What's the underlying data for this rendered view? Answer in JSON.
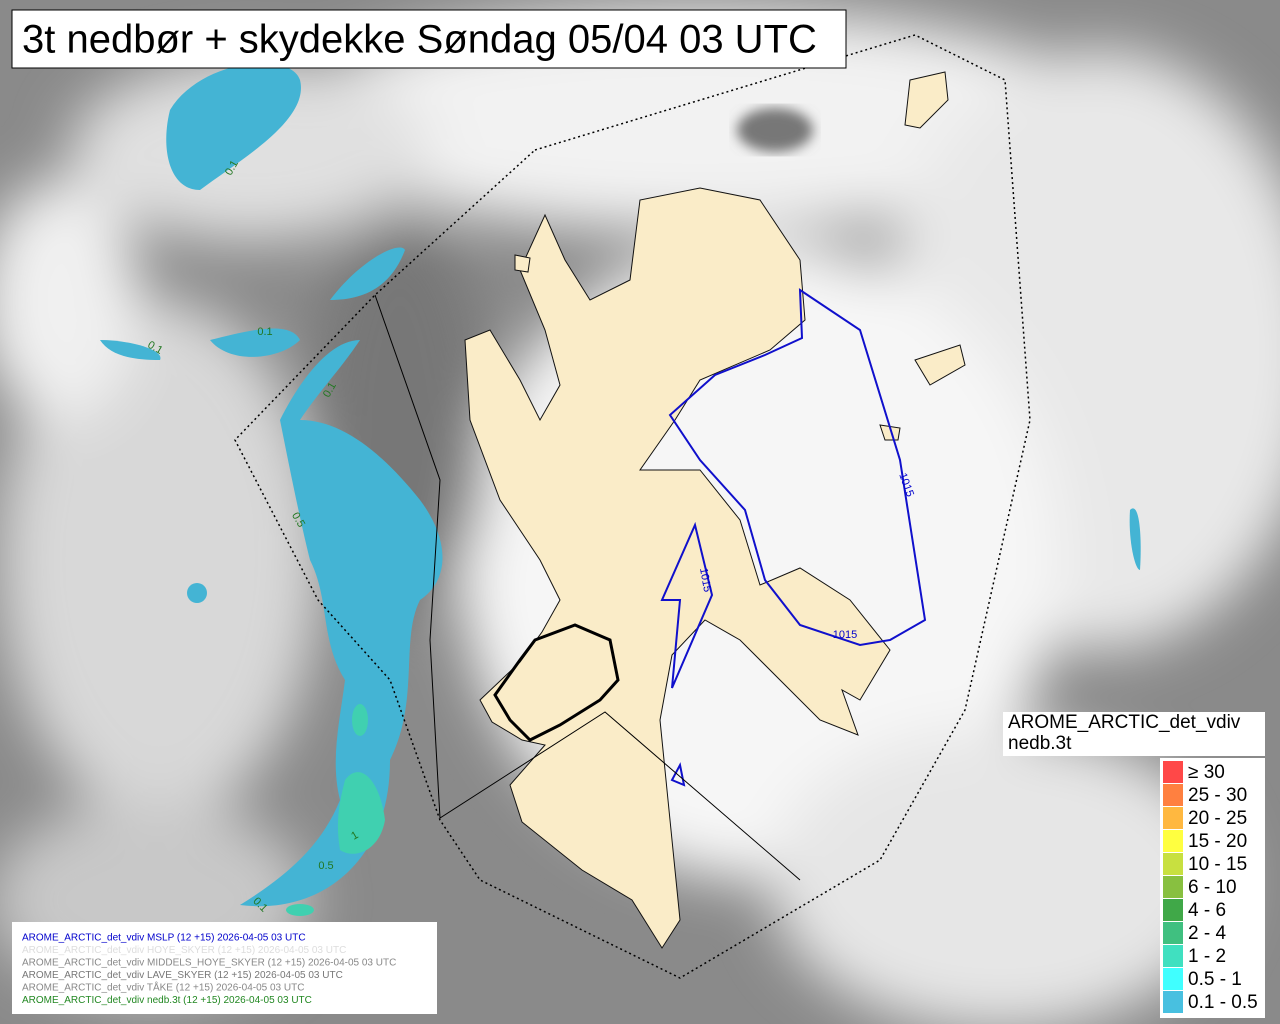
{
  "title": "3t nedbør + skydekke Søndag 05/04 03 UTC",
  "legend": {
    "title": [
      "AROME_ARCTIC_det_vdiv",
      "nedb.3t"
    ],
    "items": [
      {
        "label": "≥ 30",
        "color": "#ff4848"
      },
      {
        "label": "25 - 30",
        "color": "#ff8040"
      },
      {
        "label": "20 - 25",
        "color": "#ffb840"
      },
      {
        "label": "15 - 20",
        "color": "#ffff40"
      },
      {
        "label": "10 - 15",
        "color": "#c8e040"
      },
      {
        "label": "6 - 10",
        "color": "#88c040"
      },
      {
        "label": "4 - 6",
        "color": "#40a848"
      },
      {
        "label": "2 - 4",
        "color": "#40c080"
      },
      {
        "label": "1 - 2",
        "color": "#40e0c0"
      },
      {
        "label": "0.5 - 1",
        "color": "#40ffff"
      },
      {
        "label": "0.1 - 0.5",
        "color": "#48c0e0"
      }
    ]
  },
  "credits": [
    {
      "text": "AROME_ARCTIC_det_vdiv MSLP (12 +15) 2026-04-05 03 UTC",
      "color": "#0000cc"
    },
    {
      "text": "AROME_ARCTIC_det_vdiv HOYE_SKYER (12 +15) 2026-04-05 03 UTC",
      "color": "#dddddd"
    },
    {
      "text": "AROME_ARCTIC_det_vdiv MIDDELS_HOYE_SKYER (12 +15) 2026-04-05 03 UTC",
      "color": "#888888"
    },
    {
      "text": "AROME_ARCTIC_det_vdiv LAVE_SKYER (12 +15) 2026-04-05 03 UTC",
      "color": "#777777"
    },
    {
      "text": "AROME_ARCTIC_det_vdiv TÅKE (12 +15) 2026-04-05 03 UTC",
      "color": "#888888"
    },
    {
      "text": "AROME_ARCTIC_det_vdiv nedb.3t (12 +15) 2026-04-05 03 UTC",
      "color": "#228822"
    }
  ],
  "contour_labels": [
    {
      "text": "0.1",
      "color": "#227722"
    },
    {
      "text": "0.1",
      "color": "#227722"
    },
    {
      "text": "0.1",
      "color": "#227722"
    },
    {
      "text": "0.1",
      "color": "#227722"
    },
    {
      "text": "0.5",
      "color": "#227722"
    },
    {
      "text": "1",
      "color": "#227722"
    },
    {
      "text": "0.5",
      "color": "#227722"
    },
    {
      "text": "0.1",
      "color": "#227722"
    },
    {
      "text": "1015",
      "color": "#0000cc"
    },
    {
      "text": "1015",
      "color": "#0000cc"
    },
    {
      "text": "1015",
      "color": "#0000cc"
    }
  ]
}
